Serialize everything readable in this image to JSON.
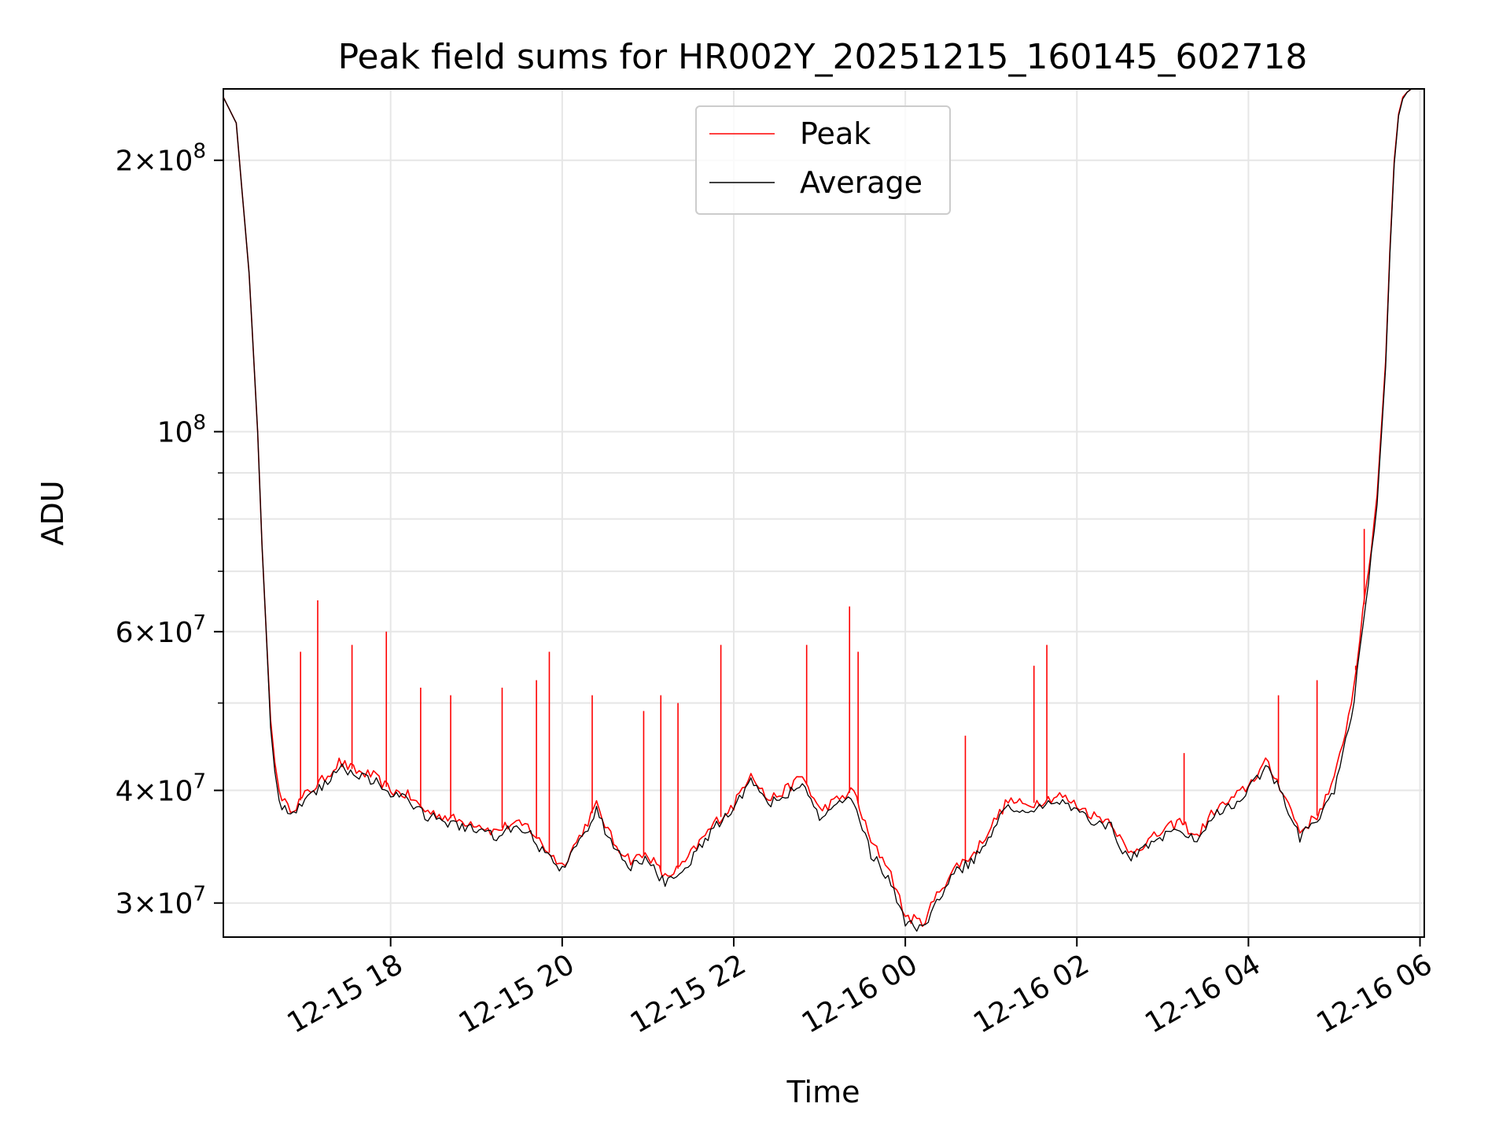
{
  "chart_data": {
    "type": "line",
    "title": "Peak field sums for HR002Y_20251215_160145_602718",
    "xlabel": "Time",
    "ylabel": "ADU",
    "yscale": "log",
    "ylim": [
      27500000,
      240000000
    ],
    "xlim_hours": [
      16.05,
      30.05
    ],
    "grid": true,
    "legend_position": "upper-center",
    "x_ticks": [
      {
        "hour": 18,
        "label": "12-15 18"
      },
      {
        "hour": 20,
        "label": "12-15 20"
      },
      {
        "hour": 22,
        "label": "12-15 22"
      },
      {
        "hour": 24,
        "label": "12-16 00"
      },
      {
        "hour": 26,
        "label": "12-16 02"
      },
      {
        "hour": 28,
        "label": "12-16 04"
      },
      {
        "hour": 30,
        "label": "12-16 06"
      }
    ],
    "y_major_ticks": [
      {
        "value": 30000000,
        "mant": "3",
        "exp": "7"
      },
      {
        "value": 40000000,
        "mant": "4",
        "exp": "7"
      },
      {
        "value": 60000000,
        "mant": "6",
        "exp": "7"
      },
      {
        "value": 100000000,
        "mant": "",
        "exp": "8"
      },
      {
        "value": 200000000,
        "mant": "2",
        "exp": "8"
      }
    ],
    "y_minor_values": [
      50000000,
      70000000,
      80000000,
      90000000
    ],
    "series": [
      {
        "name": "Peak",
        "color": "#ff0000",
        "time_hours": [
          16.05,
          16.2,
          16.35,
          16.45,
          16.5,
          16.55,
          16.6,
          16.65,
          16.7,
          16.8,
          16.9,
          17.0,
          17.2,
          17.4,
          17.6,
          17.8,
          18.0,
          18.2,
          18.4,
          18.6,
          18.8,
          19.0,
          19.2,
          19.4,
          19.6,
          19.8,
          20.0,
          20.2,
          20.4,
          20.6,
          20.8,
          21.0,
          21.2,
          21.4,
          21.6,
          21.8,
          22.0,
          22.2,
          22.4,
          22.6,
          22.8,
          23.0,
          23.2,
          23.4,
          23.6,
          23.8,
          24.0,
          24.2,
          24.4,
          24.6,
          24.8,
          25.0,
          25.2,
          25.4,
          25.6,
          25.8,
          26.0,
          26.2,
          26.4,
          26.6,
          26.8,
          27.0,
          27.2,
          27.4,
          27.6,
          27.8,
          28.0,
          28.2,
          28.4,
          28.6,
          28.8,
          29.0,
          29.2,
          29.4,
          29.5,
          29.6,
          29.65,
          29.7,
          29.75,
          29.8,
          29.85,
          29.9,
          30.05
        ],
        "values": [
          235000000,
          220000000,
          150000000,
          100000000,
          75000000,
          60000000,
          48000000,
          43000000,
          40000000,
          38200000,
          38500000,
          39500000,
          41000000,
          43000000,
          42000000,
          41500000,
          40000000,
          39500000,
          38000000,
          37500000,
          37000000,
          36800000,
          36000000,
          36700000,
          36500000,
          34500000,
          33000000,
          35500000,
          38500000,
          35000000,
          33500000,
          34000000,
          32000000,
          33000000,
          35000000,
          37000000,
          38500000,
          42000000,
          39000000,
          40000000,
          41500000,
          38000000,
          39000000,
          40000000,
          35000000,
          33000000,
          29000000,
          28500000,
          31000000,
          33000000,
          34000000,
          36500000,
          39000000,
          38500000,
          39000000,
          39500000,
          38500000,
          37500000,
          37000000,
          34000000,
          35000000,
          36000000,
          37000000,
          35500000,
          38000000,
          39000000,
          40500000,
          43000000,
          40000000,
          36000000,
          37500000,
          41000000,
          50000000,
          70000000,
          85000000,
          120000000,
          160000000,
          200000000,
          225000000,
          235000000,
          238000000,
          240000000,
          240000000
        ]
      },
      {
        "name": "Average",
        "color": "#000000",
        "time_hours": [
          16.05,
          16.2,
          16.35,
          16.45,
          16.5,
          16.55,
          16.6,
          16.65,
          16.7,
          16.8,
          16.9,
          17.0,
          17.2,
          17.4,
          17.6,
          17.8,
          18.0,
          18.2,
          18.4,
          18.6,
          18.8,
          19.0,
          19.2,
          19.4,
          19.6,
          19.8,
          20.0,
          20.2,
          20.4,
          20.6,
          20.8,
          21.0,
          21.2,
          21.4,
          21.6,
          21.8,
          22.0,
          22.2,
          22.4,
          22.6,
          22.8,
          23.0,
          23.2,
          23.4,
          23.6,
          23.8,
          24.0,
          24.2,
          24.4,
          24.6,
          24.8,
          25.0,
          25.2,
          25.4,
          25.6,
          25.8,
          26.0,
          26.2,
          26.4,
          26.6,
          26.8,
          27.0,
          27.2,
          27.4,
          27.6,
          27.8,
          28.0,
          28.2,
          28.4,
          28.6,
          28.8,
          29.0,
          29.2,
          29.4,
          29.5,
          29.6,
          29.65,
          29.7,
          29.75,
          29.8,
          29.85,
          29.9,
          30.05
        ],
        "values": [
          235000000,
          220000000,
          150000000,
          100000000,
          75000000,
          60000000,
          47000000,
          42000000,
          39000000,
          37500000,
          38000000,
          39000000,
          40500000,
          42500000,
          41500000,
          41000000,
          39500000,
          39000000,
          37500000,
          37000000,
          36500000,
          36300000,
          35500000,
          36200000,
          36000000,
          34000000,
          32500000,
          35000000,
          38000000,
          34500000,
          33000000,
          33500000,
          31500000,
          32500000,
          34500000,
          36500000,
          38000000,
          41500000,
          38500000,
          39500000,
          41000000,
          37500000,
          38500000,
          39000000,
          34000000,
          32000000,
          28500000,
          28000000,
          30500000,
          32500000,
          33500000,
          36000000,
          38500000,
          38000000,
          38500000,
          39000000,
          38000000,
          37000000,
          36500000,
          33500000,
          34500000,
          35500000,
          36500000,
          35000000,
          37500000,
          38500000,
          40000000,
          42500000,
          39500000,
          35500000,
          37000000,
          40000000,
          48000000,
          68000000,
          83000000,
          118000000,
          158000000,
          198000000,
          224000000,
          234000000,
          238000000,
          240000000,
          240000000
        ]
      }
    ],
    "spikes": [
      {
        "t": 16.95,
        "v": 57000000
      },
      {
        "t": 17.15,
        "v": 65000000
      },
      {
        "t": 17.55,
        "v": 58000000
      },
      {
        "t": 17.95,
        "v": 60000000
      },
      {
        "t": 18.35,
        "v": 52000000
      },
      {
        "t": 18.7,
        "v": 51000000
      },
      {
        "t": 19.3,
        "v": 52000000
      },
      {
        "t": 19.7,
        "v": 53000000
      },
      {
        "t": 19.85,
        "v": 57000000
      },
      {
        "t": 20.35,
        "v": 51000000
      },
      {
        "t": 20.95,
        "v": 49000000
      },
      {
        "t": 21.15,
        "v": 51000000
      },
      {
        "t": 21.35,
        "v": 50000000
      },
      {
        "t": 21.85,
        "v": 58000000
      },
      {
        "t": 22.85,
        "v": 58000000
      },
      {
        "t": 23.35,
        "v": 64000000
      },
      {
        "t": 23.45,
        "v": 57000000
      },
      {
        "t": 24.7,
        "v": 46000000
      },
      {
        "t": 25.5,
        "v": 55000000
      },
      {
        "t": 25.65,
        "v": 58000000
      },
      {
        "t": 27.25,
        "v": 44000000
      },
      {
        "t": 28.35,
        "v": 51000000
      },
      {
        "t": 28.8,
        "v": 53000000
      },
      {
        "t": 29.25,
        "v": 55000000
      },
      {
        "t": 29.35,
        "v": 78000000
      }
    ],
    "legend": [
      {
        "label": "Peak",
        "color": "#ff0000"
      },
      {
        "label": "Average",
        "color": "#000000"
      }
    ]
  }
}
